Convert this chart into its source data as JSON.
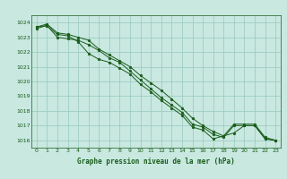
{
  "title": "Graphe pression niveau de la mer (hPa)",
  "bg_color": "#c8e8e0",
  "grid_color": "#98c8be",
  "line_color": "#1a5c1a",
  "marker_color": "#1a5c1a",
  "xlim": [
    -0.5,
    23.5
  ],
  "ylim": [
    1015.5,
    1024.5
  ],
  "yticks": [
    1016,
    1017,
    1018,
    1019,
    1020,
    1021,
    1022,
    1023,
    1024
  ],
  "xticks": [
    0,
    1,
    2,
    3,
    4,
    5,
    6,
    7,
    8,
    9,
    10,
    11,
    12,
    13,
    14,
    15,
    16,
    17,
    18,
    19,
    20,
    21,
    22,
    23
  ],
  "series1_x": [
    0,
    1,
    2,
    3,
    4,
    5,
    6,
    7,
    8,
    9,
    10,
    11,
    12,
    13,
    14,
    15,
    16,
    17,
    18,
    19,
    20,
    21,
    22,
    23
  ],
  "series1_y": [
    1023.7,
    1023.8,
    1023.0,
    1022.9,
    1022.8,
    1022.5,
    1022.1,
    1021.6,
    1021.3,
    1020.7,
    1020.1,
    1019.5,
    1018.9,
    1018.4,
    1017.9,
    1017.1,
    1016.9,
    1016.4,
    1016.2,
    1017.0,
    1017.0,
    1017.0,
    1016.1,
    1016.0
  ],
  "series2_x": [
    0,
    1,
    2,
    3,
    4,
    5,
    6,
    7,
    8,
    9,
    10,
    11,
    12,
    13,
    14,
    15,
    16,
    17,
    18,
    19,
    20,
    21,
    22,
    23
  ],
  "series2_y": [
    1023.6,
    1023.8,
    1023.2,
    1023.1,
    1022.7,
    1021.9,
    1021.5,
    1021.3,
    1020.9,
    1020.5,
    1019.8,
    1019.3,
    1018.7,
    1018.2,
    1017.7,
    1016.9,
    1016.7,
    1016.1,
    1016.3,
    1016.5,
    1017.0,
    1017.0,
    1016.1,
    1016.0
  ],
  "series3_x": [
    0,
    1,
    2,
    3,
    4,
    5,
    6,
    7,
    8,
    9,
    10,
    11,
    12,
    13,
    14,
    15,
    16,
    17,
    18,
    19,
    20,
    21,
    22,
    23
  ],
  "series3_y": [
    1023.7,
    1023.9,
    1023.3,
    1023.2,
    1023.0,
    1022.8,
    1022.2,
    1021.8,
    1021.4,
    1021.0,
    1020.4,
    1019.9,
    1019.4,
    1018.8,
    1018.2,
    1017.5,
    1017.0,
    1016.6,
    1016.3,
    1017.1,
    1017.1,
    1017.1,
    1016.2,
    1016.0
  ]
}
